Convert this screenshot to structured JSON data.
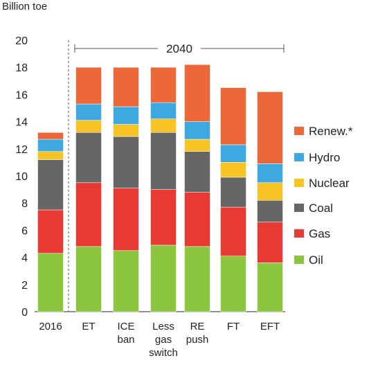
{
  "chart_data": {
    "type": "bar",
    "stacked": true,
    "ylabel": "Billion toe",
    "ylim": [
      0,
      20
    ],
    "yticks": [
      0,
      2,
      4,
      6,
      8,
      10,
      12,
      14,
      16,
      18,
      20
    ],
    "grid": false,
    "legend_position": "right",
    "group_label": "2040",
    "categories": [
      {
        "lines": [
          "2016"
        ]
      },
      {
        "lines": [
          "ET"
        ]
      },
      {
        "lines": [
          "ICE",
          "ban"
        ]
      },
      {
        "lines": [
          "Less",
          "gas",
          "switch"
        ]
      },
      {
        "lines": [
          "RE",
          "push"
        ]
      },
      {
        "lines": [
          "FT"
        ]
      },
      {
        "lines": [
          "EFT"
        ]
      }
    ],
    "series": [
      {
        "name": "Oil",
        "color": "#8cc63f",
        "values": [
          4.3,
          4.8,
          4.5,
          4.9,
          4.8,
          4.1,
          3.6
        ]
      },
      {
        "name": "Gas",
        "color": "#e63a32",
        "values": [
          3.2,
          4.7,
          4.6,
          4.1,
          4.0,
          3.6,
          3.0
        ]
      },
      {
        "name": "Coal",
        "color": "#666666",
        "values": [
          3.7,
          3.7,
          3.8,
          4.2,
          3.0,
          2.2,
          1.6
        ]
      },
      {
        "name": "Nuclear",
        "color": "#f7c325",
        "values": [
          0.6,
          0.9,
          0.9,
          1.0,
          0.9,
          1.1,
          1.3
        ]
      },
      {
        "name": "Hydro",
        "color": "#3ea8e0",
        "values": [
          0.9,
          1.2,
          1.3,
          1.2,
          1.3,
          1.3,
          1.4
        ]
      },
      {
        "name": "Renew.*",
        "color": "#ec6839",
        "values": [
          0.5,
          2.7,
          2.9,
          2.6,
          4.2,
          4.2,
          5.3
        ]
      }
    ]
  }
}
